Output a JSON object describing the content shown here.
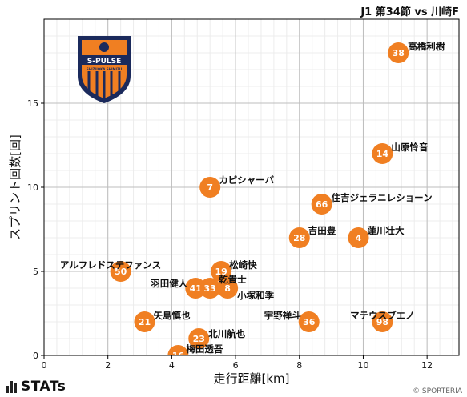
{
  "page": {
    "title": "J1 第34節 vs 川崎F",
    "brand": "STATs",
    "credit": "© SPORTERIA",
    "club_logo": {
      "text": "S-PULSE",
      "subtext": "SHIZUOKA SHIMIZU",
      "colors": {
        "primary": "#f07f22",
        "secondary": "#1b2a5c"
      }
    }
  },
  "chart_data": {
    "type": "scatter",
    "title": "J1 第34節 vs 川崎F",
    "xlabel": "走行距離[km]",
    "ylabel": "スプリント回数[回]",
    "xlim": [
      0,
      13
    ],
    "ylim": [
      0,
      20
    ],
    "xticks": [
      0,
      2,
      4,
      6,
      8,
      10,
      12
    ],
    "yticks": [
      0,
      5,
      10,
      15
    ],
    "grid": true,
    "marker_color": "#f07f22",
    "points": [
      {
        "number": "38",
        "name": "高橋利樹",
        "x": 11.1,
        "y": 18
      },
      {
        "number": "14",
        "name": "山原怜音",
        "x": 10.6,
        "y": 12
      },
      {
        "number": "7",
        "name": "カピシャーバ",
        "x": 5.2,
        "y": 10
      },
      {
        "number": "66",
        "name": "住吉ジェラニレショーン",
        "x": 8.7,
        "y": 9
      },
      {
        "number": "28",
        "name": "吉田豊",
        "x": 8.0,
        "y": 7
      },
      {
        "number": "4",
        "name": "蓮川壮大",
        "x": 9.85,
        "y": 7
      },
      {
        "number": "50",
        "name": "アルフレドステファンス",
        "x": 2.4,
        "y": 5
      },
      {
        "number": "19",
        "name": "松崎快",
        "x": 5.55,
        "y": 5
      },
      {
        "number": "41",
        "name": "羽田健人",
        "x": 4.75,
        "y": 4
      },
      {
        "number": "33",
        "name": "乾貴士",
        "x": 5.2,
        "y": 4
      },
      {
        "number": "8",
        "name": "小塚和季",
        "x": 5.75,
        "y": 4
      },
      {
        "number": "21",
        "name": "矢島慎也",
        "x": 3.15,
        "y": 2
      },
      {
        "number": "36",
        "name": "宇野禅斗",
        "x": 8.3,
        "y": 2
      },
      {
        "number": "98",
        "name": "マテウスブエノ",
        "x": 10.6,
        "y": 2
      },
      {
        "number": "23",
        "name": "北川航也",
        "x": 4.85,
        "y": 1
      },
      {
        "number": "16",
        "name": "梅田透吾",
        "x": 4.2,
        "y": 0
      }
    ]
  }
}
